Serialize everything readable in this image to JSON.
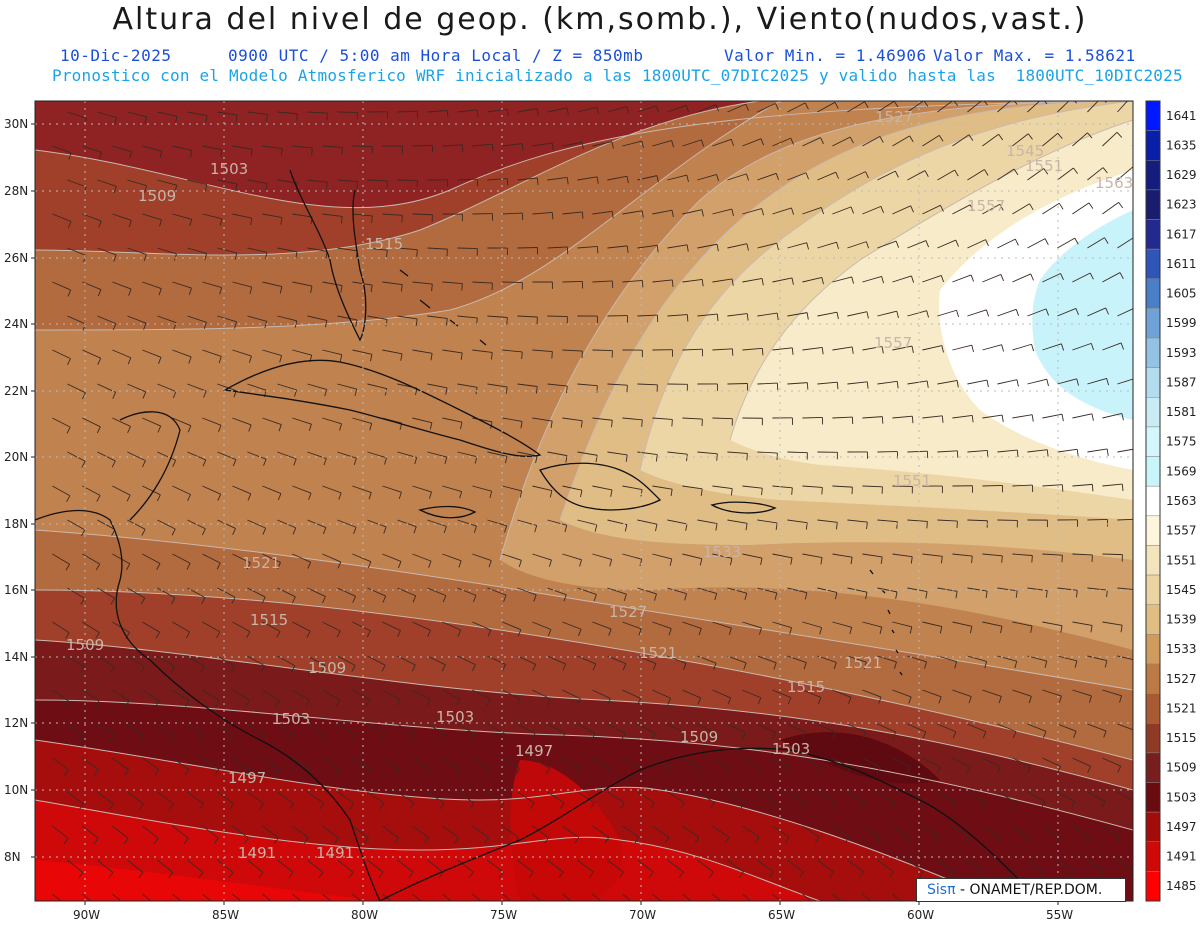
{
  "header": {
    "title": "Altura del nivel de geop. (km,somb.), Viento(nudos,vast.)",
    "valid_date": "10-Dic-2025",
    "time": "0900 UTC / 5:00 am Hora Local / Z = 850mb",
    "min_label": "Valor Min. = 1.46906",
    "max_label": "Valor Max. = 1.58621",
    "model_line": "Pronostico con el Modelo Atmosferico WRF inicializado a las 1800UTC_07DIC2025 y valido hasta las  1800UTC_10DIC2025"
  },
  "axes": {
    "lat_labels": [
      "30N",
      "28N",
      "26N",
      "24N",
      "22N",
      "20N",
      "18N",
      "16N",
      "14N",
      "12N",
      "10N",
      "8N"
    ],
    "lon_labels": [
      "90W",
      "85W",
      "80W",
      "75W",
      "70W",
      "65W",
      "60W",
      "55W"
    ]
  },
  "colorbar": {
    "levels": [
      "1641",
      "1635",
      "1629",
      "1623",
      "1617",
      "1611",
      "1605",
      "1599",
      "1593",
      "1587",
      "1581",
      "1575",
      "1569",
      "1563",
      "1557",
      "1551",
      "1545",
      "1539",
      "1533",
      "1527",
      "1521",
      "1515",
      "1509",
      "1503",
      "1497",
      "1491",
      "1485"
    ],
    "colors": [
      "#0018ff",
      "#0a1ea8",
      "#141c7e",
      "#1a1d6e",
      "#232a8f",
      "#2f55b8",
      "#4a7ec6",
      "#6fa3d8",
      "#93c2e2",
      "#b3dcee",
      "#c9ecf4",
      "#d3f6fa",
      "#c8f5fa",
      "#ffffff",
      "#fdf5dc",
      "#f4e4bc",
      "#ecd4a2",
      "#e0bd80",
      "#cf9c5e",
      "#bd7a45",
      "#a85a32",
      "#8f3a24",
      "#781e1e",
      "#6a0b12",
      "#a40b0b",
      "#cf0808",
      "#ff0000"
    ]
  },
  "contour_labels": [
    "1503",
    "1509",
    "1515",
    "1521",
    "1527",
    "1533",
    "1539",
    "1545",
    "1551",
    "1557",
    "1563",
    "1497",
    "1491"
  ],
  "credit": {
    "brand": "Sisπ",
    "org": "- ONAMET/REP.DOM."
  }
}
